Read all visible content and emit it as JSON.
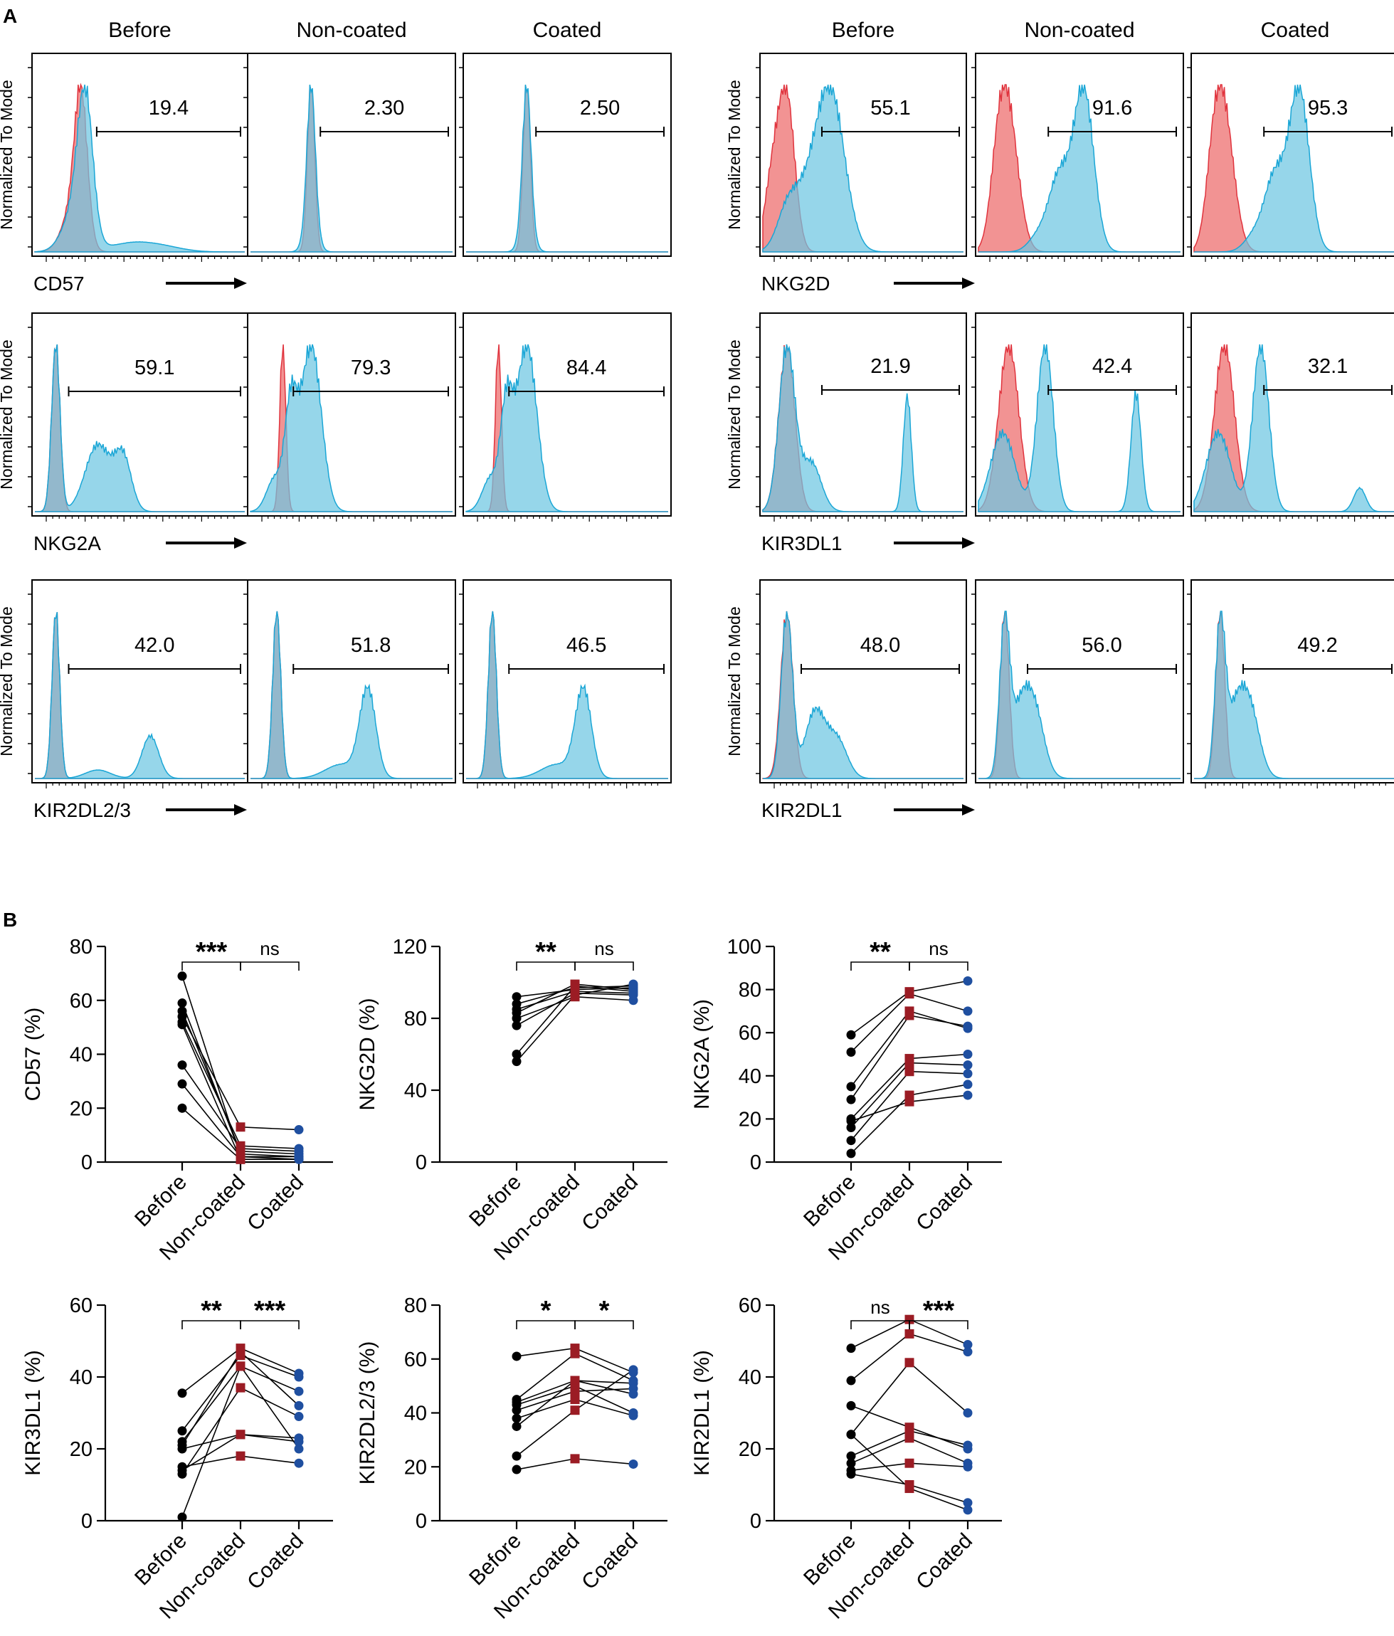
{
  "panel_labels": [
    "A",
    "B"
  ],
  "colors": {
    "red": "#f08080",
    "red_stroke": "#e0333d",
    "blue": "#6ec6e2",
    "blue_stroke": "#1aa6d6",
    "before": "#000000",
    "noncoated": "#9b1c24",
    "coated": "#1f4fa0"
  },
  "chart_data": {
    "histograms": {
      "type": "area",
      "y_label": "Normalized To Mode",
      "conditions": [
        "Before",
        "Non-coated",
        "Coated"
      ],
      "markers": [
        {
          "name": "CD57",
          "values": [
            "19.4",
            "2.30",
            "2.50"
          ]
        },
        {
          "name": "NKG2D",
          "values": [
            "55.1",
            "91.6",
            "95.3"
          ]
        },
        {
          "name": "NKG2A",
          "values": [
            "59.1",
            "79.3",
            "84.4"
          ]
        },
        {
          "name": "KIR3DL1",
          "values": [
            "21.9",
            "42.4",
            "32.1"
          ]
        },
        {
          "name": "KIR2DL2/3",
          "values": [
            "42.0",
            "51.8",
            "46.5"
          ]
        },
        {
          "name": "KIR2DL1",
          "values": [
            "48.0",
            "56.0",
            "49.2"
          ]
        }
      ]
    },
    "paired": {
      "type": "scatter",
      "categories": [
        "Before",
        "Non-coated",
        "Coated"
      ],
      "plots": [
        {
          "ylabel": "CD57 (%)",
          "ylim": [
            0,
            80
          ],
          "ticks": [
            0,
            20,
            40,
            60,
            80
          ],
          "sig": [
            "***",
            "ns"
          ],
          "series": [
            [
              69,
              2,
              1
            ],
            [
              59,
              3,
              2
            ],
            [
              56,
              4,
              3
            ],
            [
              54,
              13,
              12
            ],
            [
              52,
              6,
              5
            ],
            [
              51,
              1,
              1
            ],
            [
              36,
              5,
              4
            ],
            [
              29,
              2,
              2
            ],
            [
              20,
              1,
              1
            ]
          ]
        },
        {
          "ylabel": "NKG2D (%)",
          "ylim": [
            0,
            120
          ],
          "ticks": [
            0,
            40,
            80,
            120
          ],
          "sig": [
            "**",
            "ns"
          ],
          "series": [
            [
              92,
              96,
              97
            ],
            [
              88,
              97,
              98
            ],
            [
              85,
              95,
              94
            ],
            [
              83,
              99,
              96
            ],
            [
              80,
              92,
              90
            ],
            [
              76,
              94,
              93
            ],
            [
              60,
              98,
              95
            ],
            [
              56,
              93,
              99
            ]
          ]
        },
        {
          "ylabel": "NKG2A (%)",
          "ylim": [
            0,
            100
          ],
          "ticks": [
            0,
            20,
            40,
            60,
            80,
            100
          ],
          "sig": [
            "**",
            "ns"
          ],
          "series": [
            [
              59,
              79,
              84
            ],
            [
              51,
              78,
              70
            ],
            [
              35,
              70,
              62
            ],
            [
              29,
              68,
              63
            ],
            [
              20,
              48,
              50
            ],
            [
              16,
              46,
              45
            ],
            [
              10,
              42,
              41
            ],
            [
              4,
              31,
              36
            ],
            [
              19,
              28,
              31
            ]
          ]
        },
        {
          "ylabel": "KIR3DL1 (%)",
          "ylim": [
            0,
            60
          ],
          "ticks": [
            0,
            20,
            40,
            60
          ],
          "sig": [
            "**",
            "***"
          ],
          "series": [
            [
              35.5,
              48,
              41
            ],
            [
              25,
              46,
              40
            ],
            [
              22,
              43,
              36
            ],
            [
              21,
              47,
              32
            ],
            [
              14,
              24,
              23
            ],
            [
              13,
              37,
              29
            ],
            [
              1,
              43,
              20
            ],
            [
              20,
              24,
              22
            ],
            [
              15,
              18,
              16
            ]
          ]
        },
        {
          "ylabel": "KIR2DL2/3 (%)",
          "ylim": [
            0,
            80
          ],
          "ticks": [
            0,
            20,
            40,
            60,
            80
          ],
          "sig": [
            "*",
            "*"
          ],
          "series": [
            [
              61,
              64,
              55
            ],
            [
              45,
              62,
              52
            ],
            [
              44,
              52,
              51
            ],
            [
              43,
              50,
              40
            ],
            [
              41,
              48,
              49
            ],
            [
              38,
              45,
              39
            ],
            [
              35,
              52,
              47
            ],
            [
              24,
              41,
              56
            ],
            [
              19,
              23,
              21
            ]
          ]
        },
        {
          "ylabel": "KIR2DL1 (%)",
          "ylim": [
            0,
            60
          ],
          "ticks": [
            0,
            20,
            40,
            60
          ],
          "sig": [
            "ns",
            "***"
          ],
          "series": [
            [
              48,
              56,
              49
            ],
            [
              39,
              52,
              47
            ],
            [
              32,
              26,
              20
            ],
            [
              24,
              44,
              30
            ],
            [
              18,
              25,
              21
            ],
            [
              16,
              23,
              16
            ],
            [
              14,
              16,
              15
            ],
            [
              13,
              10,
              5
            ],
            [
              24,
              9,
              3
            ]
          ]
        }
      ]
    }
  }
}
